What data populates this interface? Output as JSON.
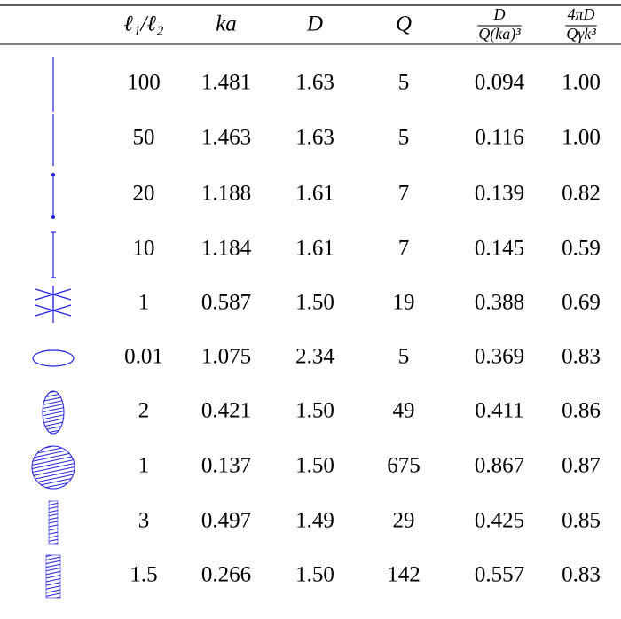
{
  "table": {
    "headers": [
      {
        "text": "ℓ₁/ℓ₂"
      },
      {
        "text": "ka"
      },
      {
        "text": "D"
      },
      {
        "text": "Q"
      },
      {
        "numerator": "D",
        "denominator": "Q(ka)³"
      },
      {
        "numerator": "4πD",
        "denominator": "Qγk³"
      }
    ],
    "rows": [
      [
        "100",
        "1.481",
        "1.63",
        "5",
        "0.094",
        "1.00"
      ],
      [
        "50",
        "1.463",
        "1.63",
        "5",
        "0.116",
        "1.00"
      ],
      [
        "20",
        "1.188",
        "1.61",
        "7",
        "0.139",
        "0.82"
      ],
      [
        "10",
        "1.184",
        "1.61",
        "7",
        "0.145",
        "0.59"
      ],
      [
        "1",
        "0.587",
        "1.50",
        "19",
        "0.388",
        "0.69"
      ],
      [
        "0.01",
        "1.075",
        "2.34",
        "5",
        "0.369",
        "0.83"
      ],
      [
        "2",
        "0.421",
        "1.50",
        "49",
        "0.411",
        "0.86"
      ],
      [
        "1",
        "0.137",
        "1.50",
        "675",
        "0.867",
        "0.87"
      ],
      [
        "3",
        "0.497",
        "1.49",
        "29",
        "0.425",
        "0.85"
      ],
      [
        "1.5",
        "0.266",
        "1.50",
        "142",
        "0.557",
        "0.83"
      ]
    ]
  }
}
